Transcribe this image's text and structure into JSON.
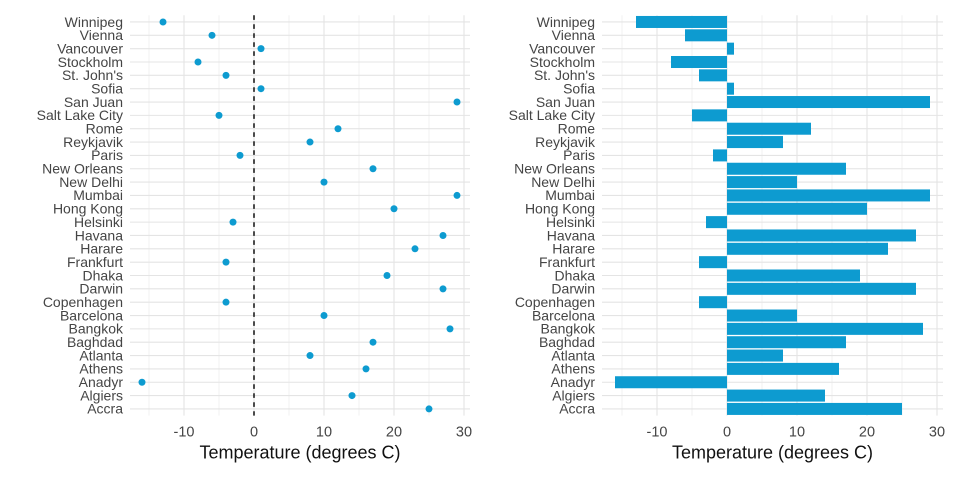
{
  "figure": {
    "accent_color": "#0d9bd0",
    "grid_major_color": "#e4e4e4",
    "grid_minor_color": "#f2f2f2",
    "label_color": "#454545",
    "axis_title_color": "#111111",
    "zero_line_color": "#2b2b2b",
    "background_color": "#ffffff"
  },
  "chart_data": [
    {
      "type": "scatter",
      "orientation": "horizontal",
      "title": "",
      "xlabel": "Temperature (degrees C)",
      "ylabel": "",
      "categories": [
        "Winnipeg",
        "Vienna",
        "Vancouver",
        "Stockholm",
        "St. John's",
        "Sofia",
        "San Juan",
        "Salt Lake City",
        "Rome",
        "Reykjavik",
        "Paris",
        "New Orleans",
        "New Delhi",
        "Mumbai",
        "Hong Kong",
        "Helsinki",
        "Havana",
        "Harare",
        "Frankfurt",
        "Dhaka",
        "Darwin",
        "Copenhagen",
        "Barcelona",
        "Bangkok",
        "Baghdad",
        "Atlanta",
        "Athens",
        "Anadyr",
        "Algiers",
        "Accra"
      ],
      "values": [
        -13,
        -6,
        1,
        -8,
        -4,
        1,
        29,
        -5,
        12,
        8,
        -2,
        17,
        10,
        29,
        20,
        -3,
        27,
        23,
        -4,
        19,
        27,
        -4,
        10,
        28,
        17,
        8,
        16,
        -16,
        14,
        25
      ],
      "xlim": [
        -17.7,
        30.9
      ],
      "xticks": [
        -10,
        0,
        10,
        20,
        30
      ],
      "minor_xticks": [
        -15,
        -5,
        5,
        15,
        25
      ],
      "grid": true,
      "legend": false,
      "zero_line": "dashed"
    },
    {
      "type": "bar",
      "orientation": "horizontal",
      "title": "",
      "xlabel": "Temperature (degrees C)",
      "ylabel": "",
      "categories": [
        "Winnipeg",
        "Vienna",
        "Vancouver",
        "Stockholm",
        "St. John's",
        "Sofia",
        "San Juan",
        "Salt Lake City",
        "Rome",
        "Reykjavik",
        "Paris",
        "New Orleans",
        "New Delhi",
        "Mumbai",
        "Hong Kong",
        "Helsinki",
        "Havana",
        "Harare",
        "Frankfurt",
        "Dhaka",
        "Darwin",
        "Copenhagen",
        "Barcelona",
        "Bangkok",
        "Baghdad",
        "Atlanta",
        "Athens",
        "Anadyr",
        "Algiers",
        "Accra"
      ],
      "values": [
        -13,
        -6,
        1,
        -8,
        -4,
        1,
        29,
        -5,
        12,
        8,
        -2,
        17,
        10,
        29,
        20,
        -3,
        27,
        23,
        -4,
        19,
        27,
        -4,
        10,
        28,
        17,
        8,
        16,
        -16,
        14,
        25
      ],
      "xlim": [
        -17.9,
        30.9
      ],
      "xticks": [
        -10,
        0,
        10,
        20,
        30
      ],
      "minor_xticks": [
        -15,
        -5,
        5,
        15,
        25
      ],
      "grid": true,
      "legend": false,
      "zero_line": "none"
    }
  ]
}
